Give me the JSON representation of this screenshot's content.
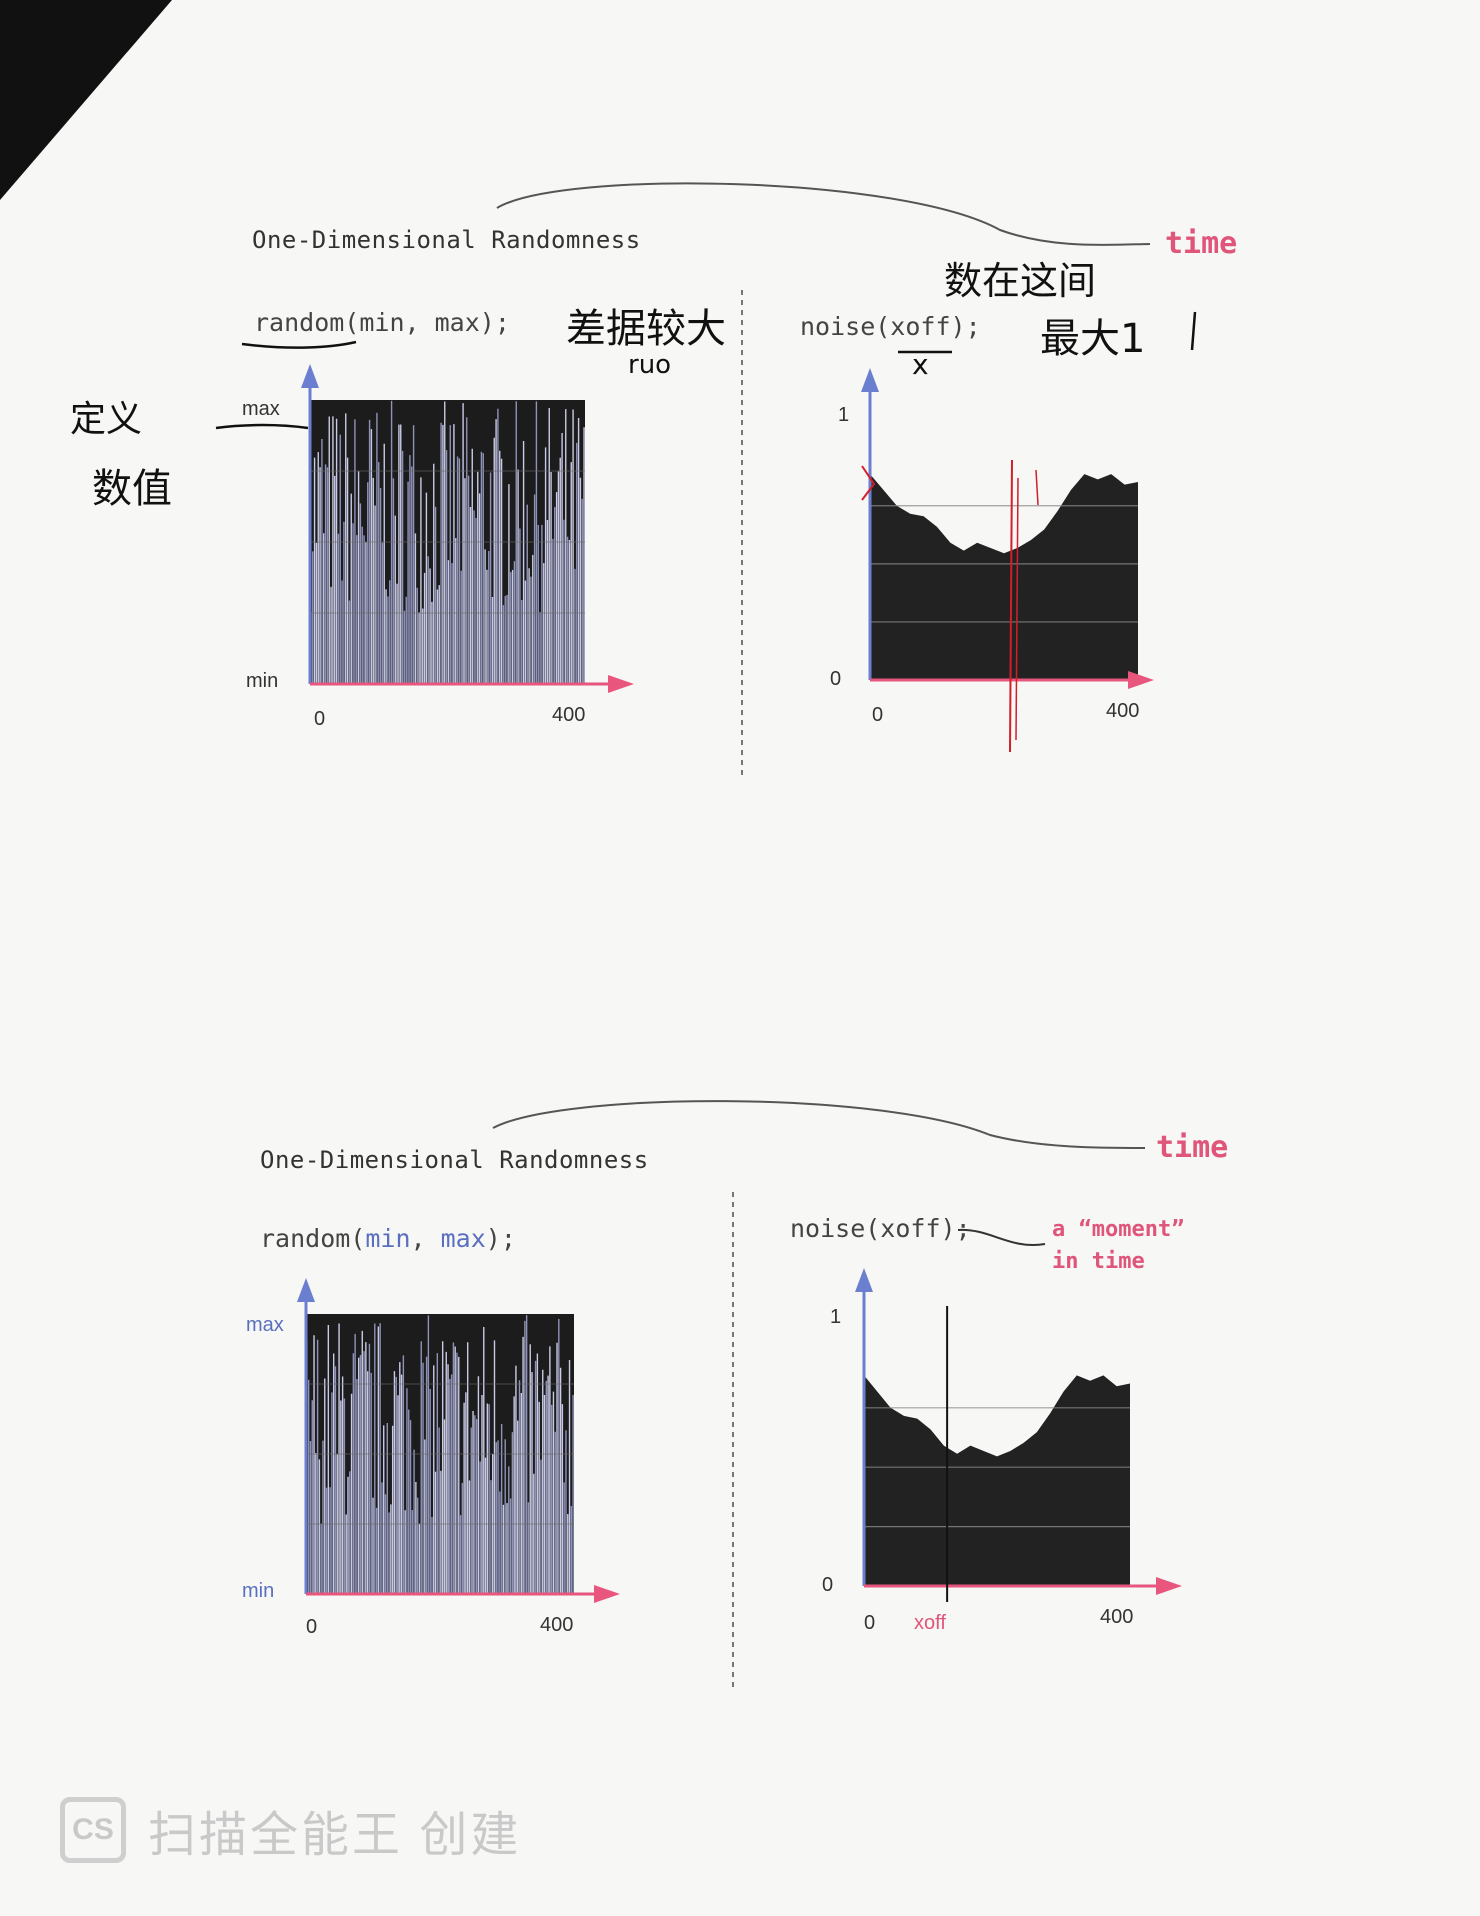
{
  "top": {
    "title": "One-Dimensional Randomness",
    "random_code": "random(min, max);",
    "noise_code": "noise(xoff);",
    "time_label": "time",
    "left_max": "max",
    "left_min": "min",
    "left_x0": "0",
    "left_x1": "400",
    "right_y1": "1",
    "right_y0": "0",
    "right_x0": "0",
    "right_x1": "400"
  },
  "bottom": {
    "title": "One-Dimensional Randomness",
    "random_fn": "random(",
    "random_min": "min",
    "random_sep": ", ",
    "random_max": "max",
    "random_end": ");",
    "noise_code": "noise(xoff);",
    "time_label": "time",
    "moment_line1": "a “moment”",
    "moment_line2": "in time",
    "left_max": "max",
    "left_min": "min",
    "left_x0": "0",
    "left_x1": "400",
    "right_y1": "1",
    "right_y0": "0",
    "right_x0": "0",
    "right_x1": "400",
    "xoff_label": "xoff"
  },
  "handwriting": {
    "note_range_1": "定义",
    "note_range_2": "数值",
    "note_diff_1": "差据较大",
    "note_diff_2": "ruo",
    "note_time_1": "数在这间",
    "note_time_2": "最大1",
    "note_x": "x"
  },
  "watermark": {
    "badge": "CS",
    "text": "扫描全能王 创建"
  },
  "colors": {
    "axis_blue": "#6b7fd1",
    "axis_pink": "#e8567e",
    "accent_pink": "#e0557a",
    "ink": "#111111",
    "red_pen": "#d21f2a"
  },
  "chart_data": [
    {
      "type": "bar",
      "title": "",
      "xlabel": "",
      "ylabel": "",
      "xlim": [
        0,
        400
      ],
      "ylim": [
        "min",
        "max"
      ],
      "description_code": "random(min, max);"
    },
    {
      "type": "area",
      "title": "",
      "xlabel": "",
      "ylabel": "",
      "xlim": [
        0,
        400
      ],
      "ylim": [
        0,
        1
      ],
      "x": [
        0,
        20,
        40,
        60,
        80,
        100,
        120,
        140,
        160,
        180,
        200,
        220,
        240,
        260,
        280,
        300,
        320,
        340,
        360,
        380,
        400
      ],
      "y": [
        0.78,
        0.72,
        0.66,
        0.63,
        0.62,
        0.58,
        0.52,
        0.49,
        0.52,
        0.5,
        0.48,
        0.5,
        0.53,
        0.57,
        0.64,
        0.72,
        0.78,
        0.76,
        0.78,
        0.74,
        0.75
      ],
      "description_code": "noise(xoff);"
    }
  ]
}
